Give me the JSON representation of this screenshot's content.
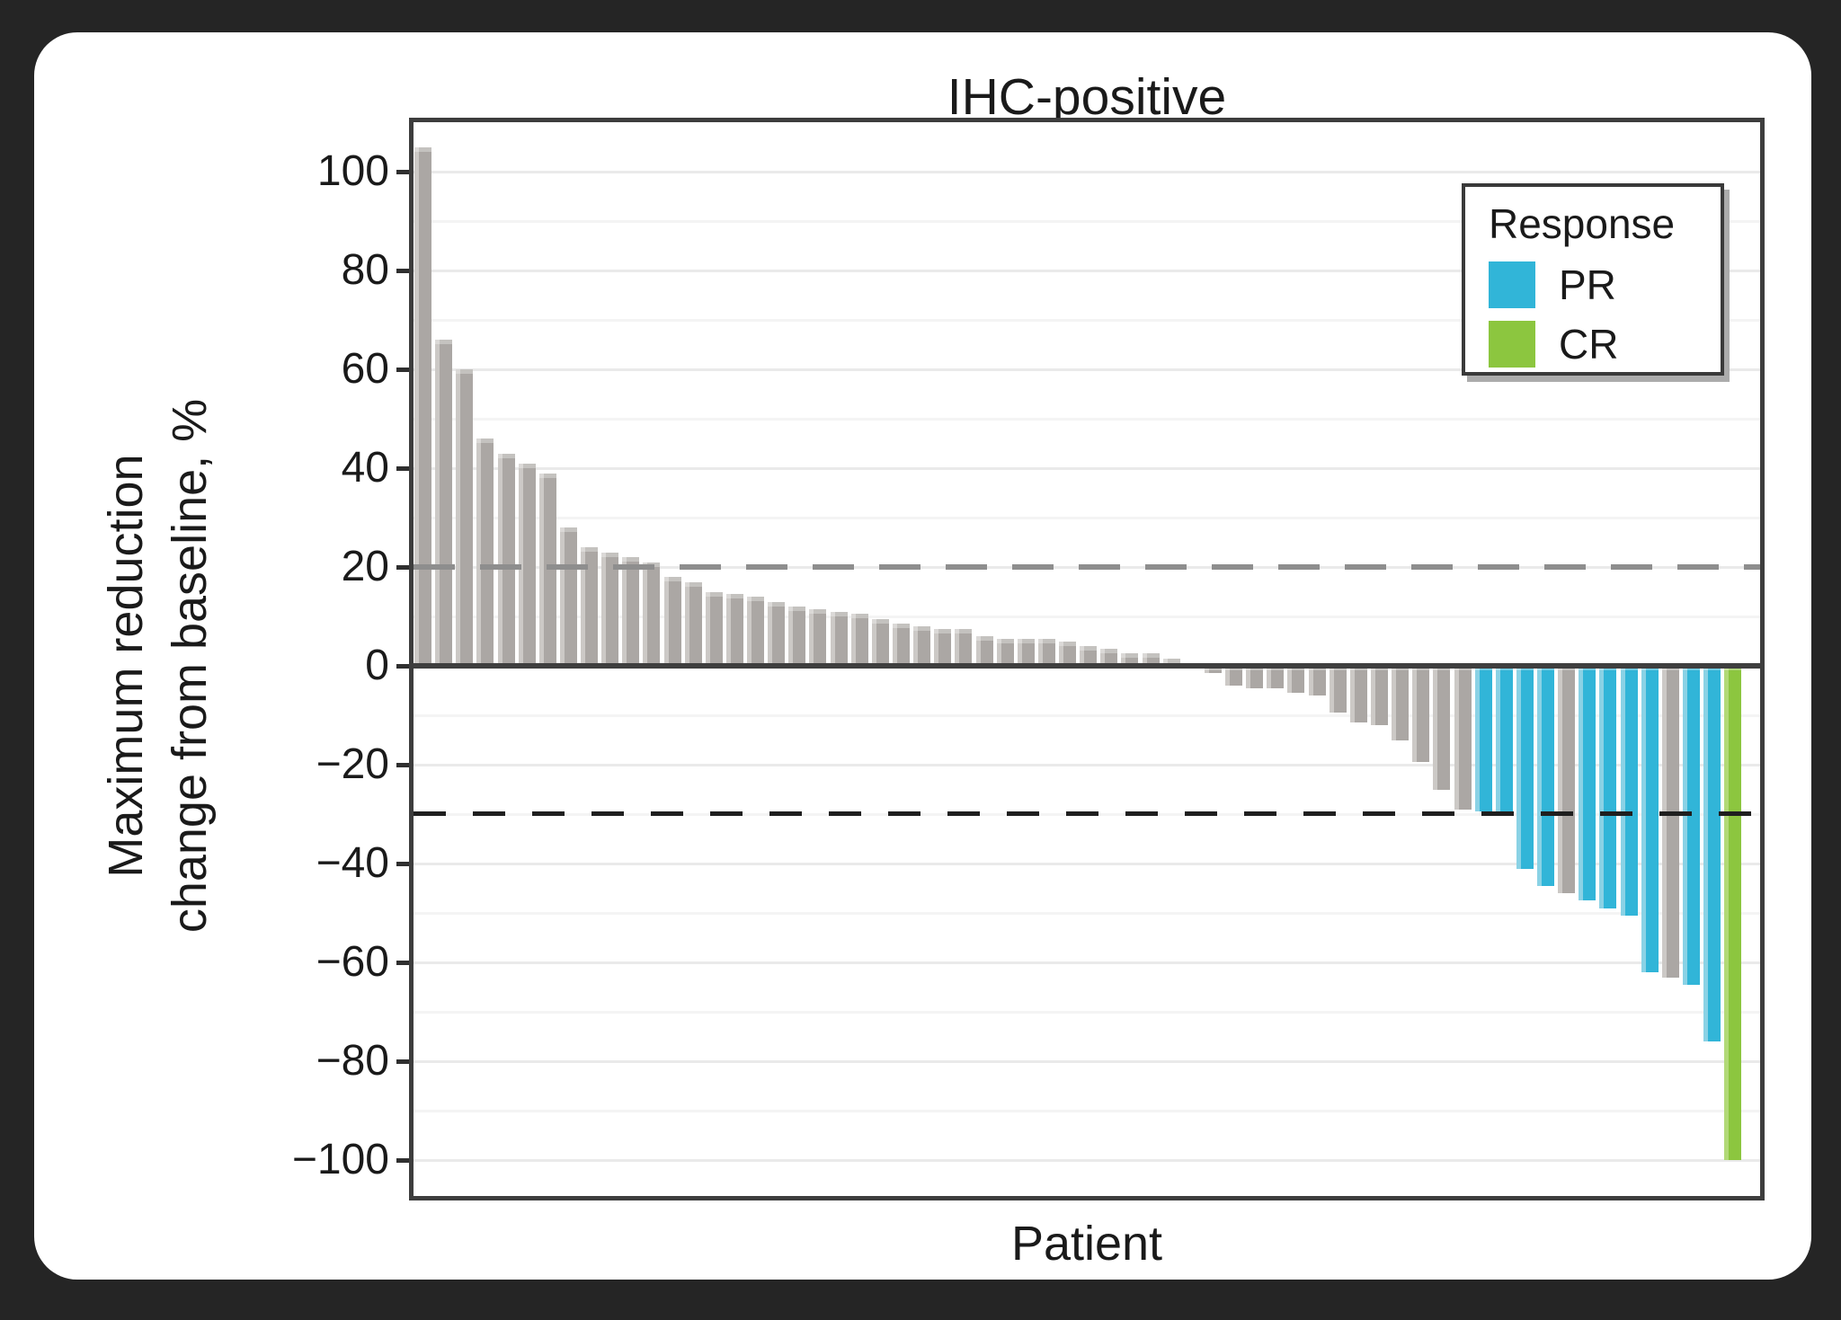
{
  "figure": {
    "title": "IHC-positive",
    "x_axis_label": "Patient",
    "y_axis_label_line1": "Maximum reduction",
    "y_axis_label_line2": "change from baseline, %"
  },
  "legend": {
    "title": "Response",
    "items": [
      {
        "label": "PR",
        "color": "#31b5d8"
      },
      {
        "label": "CR",
        "color": "#8cc63f"
      }
    ]
  },
  "colors": {
    "bar_gray": "#aba7a4",
    "bar_gray_light": "#ccc9c6",
    "bar_pr": "#31b5d8",
    "bar_pr_light": "#8ad2e5",
    "bar_cr": "#8cc63f",
    "bar_cr_light": "#b2d977",
    "ref_upper": "#8e8e8e",
    "ref_lower": "#1f1f1f",
    "zero_line": "#3f3f3f",
    "frame": "#3d3d3d"
  },
  "chart_data": {
    "type": "bar",
    "title": "IHC-positive",
    "xlabel": "Patient",
    "ylabel": "Maximum reduction change from baseline, %",
    "ylim": [
      -108,
      111
    ],
    "yticks": [
      100,
      80,
      60,
      40,
      20,
      0,
      -20,
      -40,
      -60,
      -80,
      -100
    ],
    "y_tick_labels": [
      "100",
      "80",
      "60",
      "40",
      "20",
      "0",
      "−20",
      "−40",
      "−60",
      "−80",
      "−100"
    ],
    "grid": "horizontal, every 10 units",
    "legend_position": "top-right",
    "reference_lines": [
      {
        "y": 20,
        "style": "dashed",
        "color": "gray"
      },
      {
        "y": -30,
        "style": "dashed",
        "color": "black"
      }
    ],
    "bars": [
      {
        "value": 105,
        "response": "none"
      },
      {
        "value": 66,
        "response": "none"
      },
      {
        "value": 60,
        "response": "none"
      },
      {
        "value": 46,
        "response": "none"
      },
      {
        "value": 43,
        "response": "none"
      },
      {
        "value": 41,
        "response": "none"
      },
      {
        "value": 39,
        "response": "none"
      },
      {
        "value": 28,
        "response": "none"
      },
      {
        "value": 24,
        "response": "none"
      },
      {
        "value": 23,
        "response": "none"
      },
      {
        "value": 22,
        "response": "none"
      },
      {
        "value": 21,
        "response": "none"
      },
      {
        "value": 18,
        "response": "none"
      },
      {
        "value": 17,
        "response": "none"
      },
      {
        "value": 15,
        "response": "none"
      },
      {
        "value": 14.5,
        "response": "none"
      },
      {
        "value": 14,
        "response": "none"
      },
      {
        "value": 13,
        "response": "none"
      },
      {
        "value": 12,
        "response": "none"
      },
      {
        "value": 11.5,
        "response": "none"
      },
      {
        "value": 11,
        "response": "none"
      },
      {
        "value": 10.5,
        "response": "none"
      },
      {
        "value": 9.5,
        "response": "none"
      },
      {
        "value": 8.5,
        "response": "none"
      },
      {
        "value": 8,
        "response": "none"
      },
      {
        "value": 7.5,
        "response": "none"
      },
      {
        "value": 7.5,
        "response": "none"
      },
      {
        "value": 6,
        "response": "none"
      },
      {
        "value": 5.5,
        "response": "none"
      },
      {
        "value": 5.5,
        "response": "none"
      },
      {
        "value": 5.5,
        "response": "none"
      },
      {
        "value": 5,
        "response": "none"
      },
      {
        "value": 4,
        "response": "none"
      },
      {
        "value": 3.5,
        "response": "none"
      },
      {
        "value": 2.5,
        "response": "none"
      },
      {
        "value": 2.5,
        "response": "none"
      },
      {
        "value": 1.5,
        "response": "none"
      },
      {
        "value": 0,
        "response": "none"
      },
      {
        "value": -1.5,
        "response": "none"
      },
      {
        "value": -4,
        "response": "none"
      },
      {
        "value": -4.5,
        "response": "none"
      },
      {
        "value": -4.5,
        "response": "none"
      },
      {
        "value": -5.5,
        "response": "none"
      },
      {
        "value": -6,
        "response": "none"
      },
      {
        "value": -9.5,
        "response": "none"
      },
      {
        "value": -11.5,
        "response": "none"
      },
      {
        "value": -12,
        "response": "none"
      },
      {
        "value": -15,
        "response": "none"
      },
      {
        "value": -19.5,
        "response": "none"
      },
      {
        "value": -25,
        "response": "none"
      },
      {
        "value": -29,
        "response": "none"
      },
      {
        "value": -29.5,
        "response": "PR"
      },
      {
        "value": -30,
        "response": "PR"
      },
      {
        "value": -41,
        "response": "PR"
      },
      {
        "value": -44.5,
        "response": "PR"
      },
      {
        "value": -46,
        "response": "none"
      },
      {
        "value": -47.5,
        "response": "PR"
      },
      {
        "value": -49,
        "response": "PR"
      },
      {
        "value": -50.5,
        "response": "PR"
      },
      {
        "value": -62,
        "response": "PR"
      },
      {
        "value": -63,
        "response": "none"
      },
      {
        "value": -64.5,
        "response": "PR"
      },
      {
        "value": -76,
        "response": "PR"
      },
      {
        "value": -100,
        "response": "CR"
      }
    ]
  }
}
